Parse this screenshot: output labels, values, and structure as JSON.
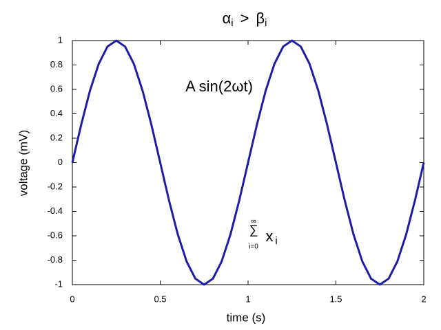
{
  "chart_data": {
    "type": "line",
    "title_parts": [
      "α",
      "i",
      ">",
      "β",
      "i"
    ],
    "x_label": "time (s)",
    "y_label": "voltage (mV)",
    "annotation": "A sin(2ωt)",
    "sum_annotation": {
      "symbol": "∑",
      "upper": "∞",
      "lower": "i=0",
      "term": "x",
      "index": "i"
    },
    "x": [
      0,
      0.05,
      0.1,
      0.15,
      0.2,
      0.25,
      0.3,
      0.35,
      0.4,
      0.45,
      0.5,
      0.55,
      0.6,
      0.65,
      0.7,
      0.75,
      0.8,
      0.85,
      0.9,
      0.95,
      1,
      1.05,
      1.1,
      1.15,
      1.2,
      1.25,
      1.3,
      1.35,
      1.4,
      1.45,
      1.5,
      1.55,
      1.6,
      1.65,
      1.7,
      1.75,
      1.8,
      1.85,
      1.9,
      1.95,
      2
    ],
    "series": [
      {
        "color": "#1c1ca8",
        "values": [
          0,
          0.309,
          0.588,
          0.809,
          0.951,
          1,
          0.951,
          0.809,
          0.588,
          0.309,
          0,
          -0.309,
          -0.588,
          -0.809,
          -0.951,
          -1,
          -0.951,
          -0.809,
          -0.588,
          -0.309,
          0,
          0.309,
          0.588,
          0.809,
          0.951,
          1,
          0.951,
          0.809,
          0.588,
          0.309,
          0,
          -0.309,
          -0.588,
          -0.809,
          -0.951,
          -1,
          -0.951,
          -0.809,
          -0.588,
          -0.309,
          0
        ]
      }
    ],
    "xlim": [
      0,
      2
    ],
    "xticks": [
      0,
      0.5,
      1,
      1.5,
      2
    ],
    "ylim": [
      -1,
      1
    ],
    "yticks": [
      -1,
      -0.8,
      -0.6,
      -0.4,
      -0.2,
      0,
      0.2,
      0.4,
      0.6,
      0.8,
      1
    ]
  }
}
